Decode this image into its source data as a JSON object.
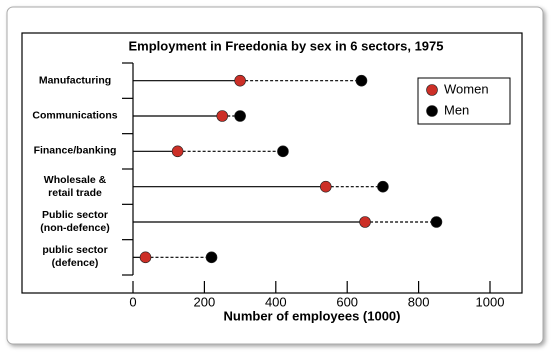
{
  "chart_data": {
    "type": "dot",
    "title": "Employment in Freedonia by sex in 6 sectors, 1975",
    "x_label": "Number of employees (1000)",
    "categories": [
      "Manufacturing",
      "Communications",
      "Finance/banking",
      "Wholesale &\nretail trade",
      "Public sector\n(non-defence)",
      "public sector\n(defence)"
    ],
    "series": [
      {
        "name": "Women",
        "color": "#cc2f27",
        "values": [
          300,
          250,
          125,
          540,
          650,
          35
        ]
      },
      {
        "name": "Men",
        "color": "#000000",
        "values": [
          640,
          300,
          420,
          700,
          850,
          220
        ]
      }
    ],
    "xlim": [
      0,
      1000
    ],
    "xticks": [
      0,
      200,
      400,
      600,
      800,
      1000
    ],
    "legend": "top-right"
  }
}
